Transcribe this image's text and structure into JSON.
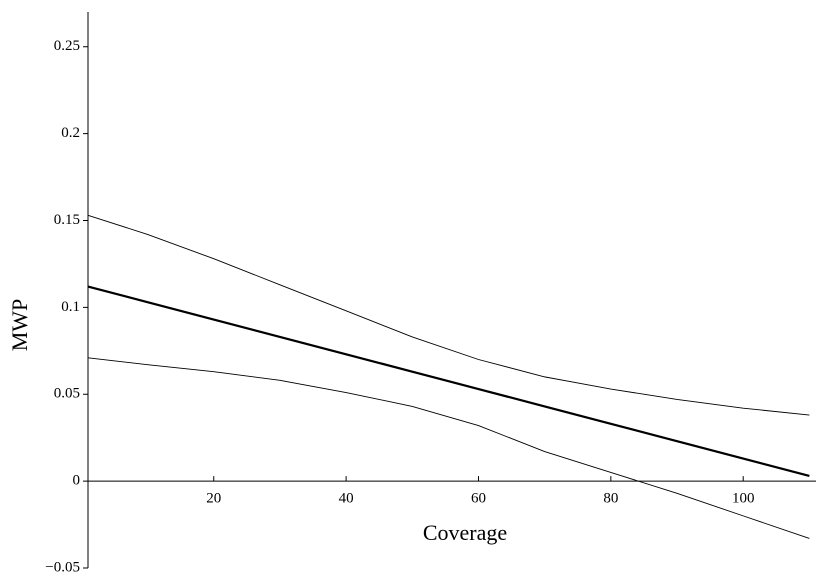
{
  "chart_data": {
    "type": "line",
    "x_label": "Coverage",
    "y_label": "MWP",
    "x": [
      1,
      10,
      20,
      30,
      40,
      50,
      60,
      70,
      80,
      90,
      100,
      110
    ],
    "series": [
      {
        "color": "#000000",
        "line_width": 0.9,
        "values": [
          0.153,
          0.142,
          0.128,
          0.113,
          0.098,
          0.083,
          0.07,
          0.06,
          0.053,
          0.047,
          0.042,
          0.038
        ]
      },
      {
        "color": "#000000",
        "line_width": 2.2,
        "values": [
          0.112,
          0.103,
          0.093,
          0.083,
          0.073,
          0.063,
          0.053,
          0.043,
          0.033,
          0.023,
          0.013,
          0.003
        ]
      },
      {
        "color": "#000000",
        "line_width": 0.9,
        "values": [
          0.071,
          0.067,
          0.063,
          0.058,
          0.051,
          0.043,
          0.032,
          0.017,
          0.005,
          -0.007,
          -0.02,
          -0.033
        ]
      }
    ],
    "xlim": [
      1,
      111
    ],
    "ylim": [
      -0.05,
      0.27
    ],
    "xticks": [
      20,
      40,
      60,
      80,
      100
    ],
    "yticks": [
      {
        "value": -0.05,
        "label": "−0.05"
      },
      0,
      0.05,
      0.1,
      0.15,
      0.2,
      0.25
    ]
  }
}
